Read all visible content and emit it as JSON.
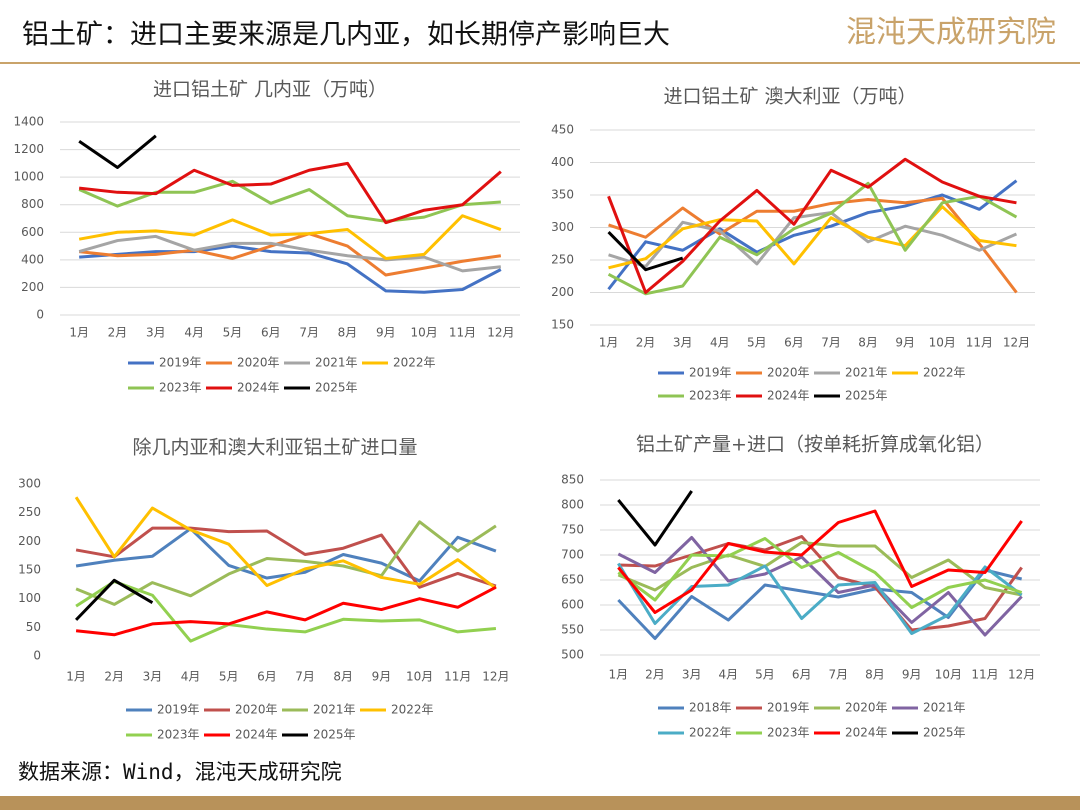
{
  "title": "铝土矿：进口主要来源是几内亚，如长期停产影响巨大",
  "brand": "混沌天成研究院",
  "source": "数据来源：Wind，混沌天成研究院",
  "chart_data": [
    {
      "type": "line",
      "title": "进口铝土矿 几内亚（万吨）",
      "categories": [
        "1月",
        "2月",
        "3月",
        "4月",
        "5月",
        "6月",
        "7月",
        "8月",
        "9月",
        "10月",
        "11月",
        "12月"
      ],
      "ylim": [
        0,
        1400
      ],
      "yticks": [
        0,
        200,
        400,
        600,
        800,
        1000,
        1200,
        1400
      ],
      "grid": true,
      "series": [
        {
          "name": "2019年",
          "color": "#4472c4",
          "values": [
            420,
            440,
            460,
            460,
            500,
            460,
            450,
            370,
            175,
            165,
            185,
            330
          ]
        },
        {
          "name": "2020年",
          "color": "#ed7d31",
          "values": [
            460,
            430,
            440,
            470,
            410,
            500,
            590,
            500,
            290,
            340,
            390,
            430
          ]
        },
        {
          "name": "2021年",
          "color": "#a5a5a5",
          "values": [
            460,
            540,
            570,
            470,
            520,
            520,
            470,
            430,
            400,
            420,
            320,
            350
          ]
        },
        {
          "name": "2022年",
          "color": "#ffc000",
          "values": [
            550,
            600,
            610,
            580,
            690,
            580,
            590,
            620,
            410,
            440,
            720,
            620
          ]
        },
        {
          "name": "2023年",
          "color": "#8fc454",
          "values": [
            910,
            790,
            890,
            890,
            970,
            810,
            910,
            720,
            680,
            710,
            800,
            820
          ]
        },
        {
          "name": "2024年",
          "color": "#e01010",
          "values": [
            920,
            890,
            880,
            1050,
            940,
            950,
            1050,
            1100,
            670,
            760,
            800,
            1040
          ]
        },
        {
          "name": "2025年",
          "color": "#000000",
          "values": [
            1260,
            1070,
            1300,
            null,
            null,
            null,
            null,
            null,
            null,
            null,
            null,
            null
          ]
        }
      ]
    },
    {
      "type": "line",
      "title": "进口铝土矿 澳大利亚（万吨）",
      "categories": [
        "1月",
        "2月",
        "3月",
        "4月",
        "5月",
        "6月",
        "7月",
        "8月",
        "9月",
        "10月",
        "11月",
        "12月"
      ],
      "ylim": [
        150,
        450
      ],
      "yticks": [
        150,
        200,
        250,
        300,
        350,
        400,
        450
      ],
      "grid": true,
      "series": [
        {
          "name": "2019年",
          "color": "#4472c4",
          "values": [
            205,
            278,
            265,
            298,
            262,
            288,
            302,
            323,
            333,
            350,
            328,
            372
          ]
        },
        {
          "name": "2020年",
          "color": "#ed7d31",
          "values": [
            304,
            285,
            330,
            290,
            325,
            325,
            337,
            343,
            338,
            345,
            275,
            200
          ]
        },
        {
          "name": "2021年",
          "color": "#a5a5a5",
          "values": [
            258,
            240,
            308,
            295,
            244,
            315,
            323,
            278,
            302,
            288,
            265,
            290
          ]
        },
        {
          "name": "2022年",
          "color": "#ffc000",
          "values": [
            238,
            252,
            298,
            312,
            310,
            244,
            315,
            285,
            272,
            332,
            280,
            272
          ]
        },
        {
          "name": "2023年",
          "color": "#8fc454",
          "values": [
            228,
            198,
            210,
            285,
            258,
            298,
            322,
            368,
            265,
            338,
            348,
            316
          ]
        },
        {
          "name": "2024年",
          "color": "#e01010",
          "values": [
            348,
            200,
            248,
            310,
            357,
            305,
            388,
            362,
            405,
            370,
            348,
            338
          ]
        },
        {
          "name": "2025年",
          "color": "#000000",
          "values": [
            293,
            235,
            253,
            null,
            null,
            null,
            null,
            null,
            null,
            null,
            null,
            null
          ]
        }
      ]
    },
    {
      "type": "line",
      "title": "除几内亚和澳大利亚铝土矿进口量",
      "categories": [
        "1月",
        "2月",
        "3月",
        "4月",
        "5月",
        "6月",
        "7月",
        "8月",
        "9月",
        "10月",
        "11月",
        "12月"
      ],
      "ylim": [
        0,
        300
      ],
      "yticks": [
        0,
        50,
        100,
        150,
        200,
        250,
        300
      ],
      "grid": false,
      "series": [
        {
          "name": "2019年",
          "color": "#4f81bd",
          "values": [
            157,
            167,
            174,
            222,
            158,
            136,
            146,
            177,
            162,
            131,
            207,
            183
          ]
        },
        {
          "name": "2020年",
          "color": "#c0504d",
          "values": [
            185,
            173,
            223,
            223,
            217,
            218,
            177,
            188,
            211,
            120,
            144,
            122
          ]
        },
        {
          "name": "2021年",
          "color": "#9bbb59",
          "values": [
            117,
            90,
            128,
            105,
            143,
            170,
            165,
            157,
            140,
            234,
            183,
            227
          ]
        },
        {
          "name": "2022年",
          "color": "#ffc000",
          "values": [
            277,
            173,
            258,
            220,
            195,
            123,
            152,
            166,
            137,
            125,
            168,
            118
          ]
        },
        {
          "name": "2023年",
          "color": "#92d050",
          "values": [
            87,
            130,
            106,
            26,
            55,
            47,
            42,
            64,
            61,
            63,
            42,
            48
          ]
        },
        {
          "name": "2024年",
          "color": "#ff0000",
          "values": [
            44,
            37,
            56,
            60,
            56,
            77,
            63,
            92,
            81,
            100,
            85,
            120
          ]
        },
        {
          "name": "2025年",
          "color": "#000000",
          "values": [
            63,
            132,
            93,
            null,
            null,
            null,
            null,
            null,
            null,
            null,
            null,
            null
          ]
        }
      ]
    },
    {
      "type": "line",
      "title": "铝土矿产量+进口（按单耗折算成氧化铝）",
      "categories": [
        "1月",
        "2月",
        "3月",
        "4月",
        "5月",
        "6月",
        "7月",
        "8月",
        "9月",
        "10月",
        "11月",
        "12月"
      ],
      "ylim": [
        500,
        850
      ],
      "yticks": [
        500,
        550,
        600,
        650,
        700,
        750,
        800,
        850
      ],
      "grid": true,
      "series": [
        {
          "name": "2018年",
          "color": "#4f81bd",
          "values": [
            610,
            533,
            617,
            570,
            640,
            628,
            616,
            632,
            625,
            575,
            670,
            652
          ]
        },
        {
          "name": "2019年",
          "color": "#c0504d",
          "values": [
            680,
            678,
            700,
            723,
            710,
            737,
            655,
            636,
            550,
            558,
            573,
            675
          ]
        },
        {
          "name": "2020年",
          "color": "#9bbb59",
          "values": [
            660,
            630,
            675,
            700,
            677,
            725,
            718,
            718,
            655,
            690,
            635,
            620
          ]
        },
        {
          "name": "2021年",
          "color": "#8064a2",
          "values": [
            702,
            665,
            735,
            648,
            662,
            696,
            625,
            640,
            565,
            625,
            540,
            617
          ]
        },
        {
          "name": "2022年",
          "color": "#4bacc6",
          "values": [
            683,
            563,
            637,
            640,
            678,
            573,
            640,
            645,
            543,
            580,
            676,
            620
          ]
        },
        {
          "name": "2023年",
          "color": "#92d050",
          "values": [
            665,
            610,
            700,
            698,
            733,
            675,
            705,
            665,
            595,
            635,
            650,
            625
          ]
        },
        {
          "name": "2024年",
          "color": "#ff0000",
          "values": [
            675,
            585,
            630,
            723,
            706,
            700,
            765,
            788,
            637,
            670,
            665,
            768
          ]
        },
        {
          "name": "2025年",
          "color": "#000000",
          "values": [
            810,
            720,
            828,
            null,
            null,
            null,
            null,
            null,
            null,
            null,
            null,
            null
          ]
        }
      ]
    }
  ]
}
